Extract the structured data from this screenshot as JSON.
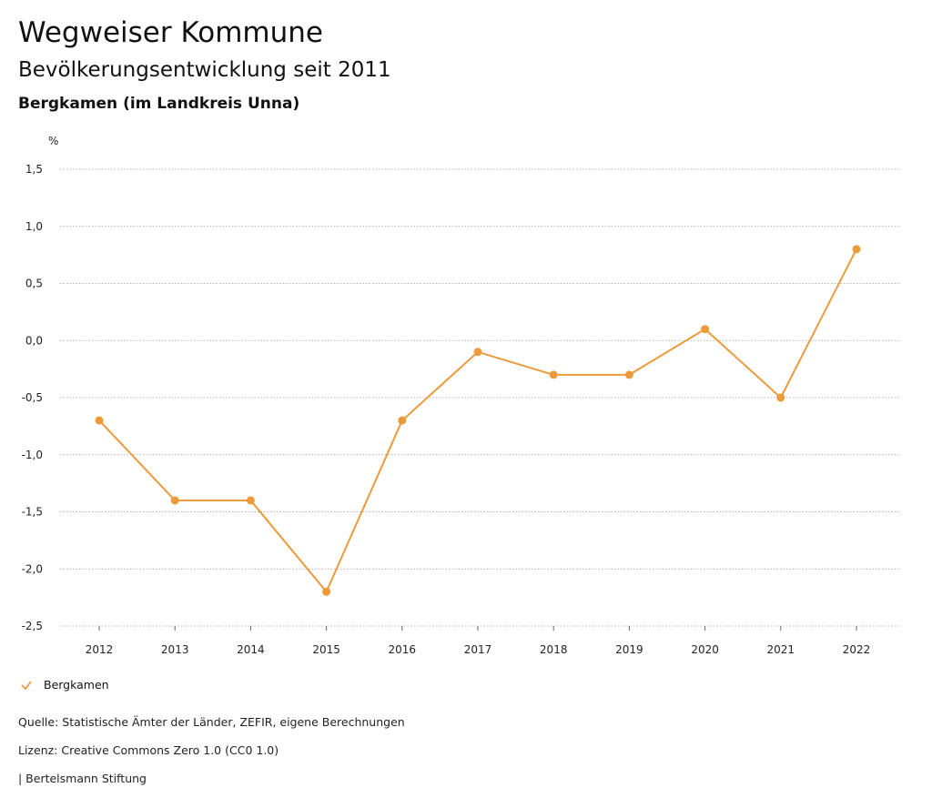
{
  "header": {
    "title": "Wegweiser Kommune",
    "subtitle": "Bevölkerungsentwicklung seit 2011",
    "region": "Bergkamen (im Landkreis Unna)"
  },
  "chart_data": {
    "type": "line",
    "ylabel": "%",
    "ylim": [
      -2.5,
      1.5
    ],
    "yticks": [
      1.5,
      1.0,
      0.5,
      0.0,
      -0.5,
      -1.0,
      -1.5,
      -2.0,
      -2.5
    ],
    "ytick_labels": [
      "1,5",
      "1,0",
      "0,5",
      "0,0",
      "-0,5",
      "-1,0",
      "-1,5",
      "-2,0",
      "-2,5"
    ],
    "categories": [
      "2012",
      "2013",
      "2014",
      "2015",
      "2016",
      "2017",
      "2018",
      "2019",
      "2020",
      "2021",
      "2022"
    ],
    "series": [
      {
        "name": "Bergkamen",
        "color": "#ec9a3a",
        "values": [
          -0.7,
          -1.4,
          -1.4,
          -2.2,
          -0.7,
          -0.1,
          -0.3,
          -0.3,
          0.1,
          -0.5,
          0.8
        ]
      }
    ],
    "grid": true,
    "legend_position": "bottom-left"
  },
  "legend": {
    "label": "Bergkamen",
    "icon": "check-icon"
  },
  "footer": {
    "source": "Quelle: Statistische Ämter der Länder, ZEFIR, eigene Berechnungen",
    "license": "Lizenz: Creative Commons Zero 1.0 (CC0 1.0)",
    "publisher": "| Bertelsmann Stiftung"
  }
}
